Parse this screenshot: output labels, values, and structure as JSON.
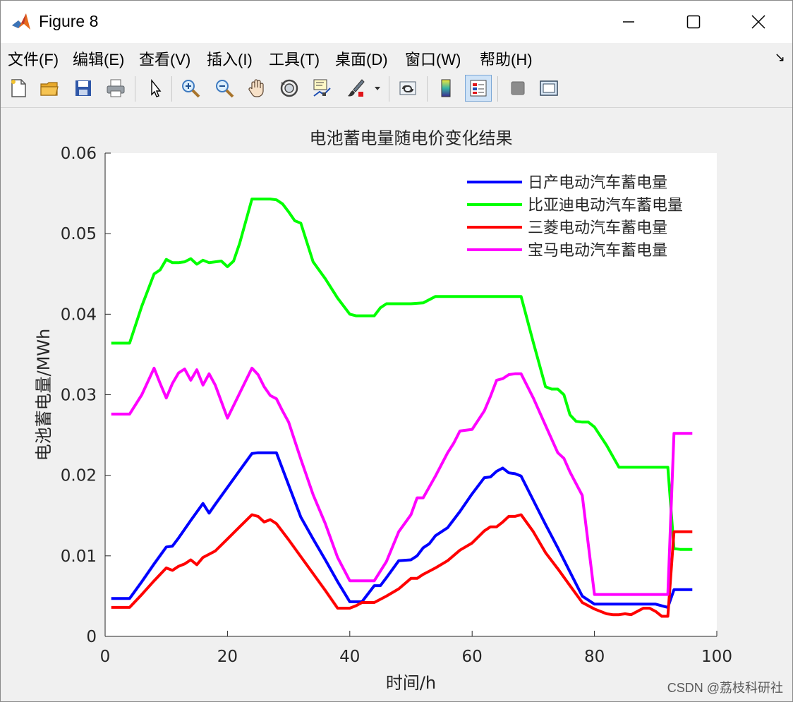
{
  "window": {
    "title": "Figure 8",
    "minimize_icon": "minimize-icon",
    "maximize_icon": "maximize-icon",
    "close_icon": "close-icon"
  },
  "menu": {
    "items": [
      "文件(F)",
      "编辑(E)",
      "查看(V)",
      "插入(I)",
      "工具(T)",
      "桌面(D)",
      "窗口(W)",
      "帮助(H)"
    ],
    "dock_arrow": "↘"
  },
  "toolbar": {
    "icons": [
      "new-figure-icon",
      "open-file-icon",
      "save-icon",
      "print-icon",
      "select-pointer-icon",
      "zoom-in-icon",
      "zoom-out-icon",
      "pan-hand-icon",
      "rotate-3d-icon",
      "data-cursor-icon",
      "brush-icon",
      "link-plot-icon",
      "colorbar-icon",
      "legend-icon",
      "hide-plot-tools-icon",
      "show-plot-tools-icon"
    ]
  },
  "colors": {
    "nissan": "#0000ff",
    "byd": "#00ff00",
    "mitsubishi": "#ff0000",
    "bmw": "#ff00ff",
    "plot_background": "#ffffff",
    "figure_background": "#f0f0f0"
  },
  "watermark": "CSDN @荔枝科研社",
  "chart_data": {
    "type": "line",
    "title": "电池蓄电量随电价变化结果",
    "xlabel": "时间/h",
    "ylabel": "电池蓄电量/MWh",
    "xlim": [
      0,
      100
    ],
    "ylim": [
      0,
      0.06
    ],
    "xticks": [
      "0",
      "20",
      "40",
      "60",
      "80",
      "100"
    ],
    "yticks": [
      "0",
      "0.01",
      "0.02",
      "0.03",
      "0.04",
      "0.05",
      "0.06"
    ],
    "grid": false,
    "legend_position": "top-right",
    "series": [
      {
        "name": "日产电动汽车蓄电量",
        "color": "#0000ff",
        "x": [
          1,
          4,
          6,
          8,
          10,
          11,
          12,
          14,
          16,
          17,
          18,
          20,
          22,
          24,
          25,
          26,
          27,
          28,
          30,
          32,
          34,
          36,
          38,
          40,
          41,
          42,
          44,
          45,
          46,
          48,
          50,
          51,
          52,
          53,
          54,
          56,
          58,
          60,
          62,
          63,
          64,
          65,
          66,
          67,
          68,
          70,
          72,
          74,
          76,
          78,
          80,
          82,
          84,
          86,
          88,
          90,
          92,
          93,
          94,
          96
        ],
        "y": [
          0.0047,
          0.0047,
          0.0068,
          0.009,
          0.0111,
          0.0112,
          0.0122,
          0.0144,
          0.0165,
          0.0153,
          0.0164,
          0.0185,
          0.0206,
          0.0227,
          0.0228,
          0.0228,
          0.0228,
          0.0228,
          0.0188,
          0.0148,
          0.0121,
          0.0095,
          0.0068,
          0.0043,
          0.0043,
          0.0043,
          0.0063,
          0.0063,
          0.0073,
          0.0094,
          0.0095,
          0.01,
          0.011,
          0.0115,
          0.0125,
          0.0135,
          0.0155,
          0.0177,
          0.0197,
          0.0198,
          0.0205,
          0.0209,
          0.0203,
          0.0202,
          0.0199,
          0.0169,
          0.0139,
          0.011,
          0.008,
          0.005,
          0.004,
          0.004,
          0.004,
          0.004,
          0.004,
          0.004,
          0.0036,
          0.0058,
          0.0058,
          0.0058
        ]
      },
      {
        "name": "比亚迪电动汽车蓄电量",
        "color": "#00ff00",
        "x": [
          1,
          4,
          6,
          8,
          9,
          10,
          11,
          12,
          13,
          14,
          15,
          16,
          17,
          18,
          19,
          20,
          21,
          22,
          24,
          25,
          26,
          27,
          28,
          29,
          30,
          31,
          32,
          34,
          36,
          38,
          40,
          41,
          42,
          43,
          44,
          45,
          46,
          48,
          50,
          52,
          54,
          56,
          58,
          60,
          62,
          64,
          66,
          68,
          70,
          72,
          73,
          74,
          75,
          76,
          77,
          78,
          79,
          80,
          82,
          84,
          86,
          88,
          90,
          92,
          93,
          94,
          96
        ],
        "y": [
          0.0364,
          0.0364,
          0.041,
          0.045,
          0.0455,
          0.0468,
          0.0464,
          0.0464,
          0.0465,
          0.0469,
          0.0462,
          0.0467,
          0.0464,
          0.0465,
          0.0466,
          0.0459,
          0.0466,
          0.0488,
          0.0543,
          0.0543,
          0.0543,
          0.0543,
          0.0542,
          0.0537,
          0.0527,
          0.0516,
          0.0513,
          0.0465,
          0.0444,
          0.042,
          0.04,
          0.0398,
          0.0398,
          0.0398,
          0.0398,
          0.0408,
          0.0413,
          0.0413,
          0.0413,
          0.0414,
          0.0422,
          0.0422,
          0.0422,
          0.0422,
          0.0422,
          0.0422,
          0.0422,
          0.0422,
          0.0365,
          0.031,
          0.0307,
          0.0307,
          0.03,
          0.0275,
          0.0267,
          0.0266,
          0.0266,
          0.026,
          0.0237,
          0.021,
          0.021,
          0.021,
          0.021,
          0.021,
          0.0109,
          0.0108,
          0.0108
        ]
      },
      {
        "name": "三菱电动汽车蓄电量",
        "color": "#ff0000",
        "x": [
          1,
          4,
          6,
          8,
          10,
          11,
          12,
          13,
          14,
          15,
          16,
          18,
          20,
          22,
          24,
          25,
          26,
          27,
          28,
          30,
          32,
          34,
          36,
          38,
          40,
          41,
          42,
          44,
          46,
          48,
          50,
          51,
          52,
          54,
          56,
          58,
          60,
          62,
          63,
          64,
          65,
          66,
          67,
          68,
          70,
          72,
          74,
          76,
          78,
          80,
          82,
          83,
          84,
          85,
          86,
          88,
          89,
          90,
          91,
          92,
          93,
          94,
          96
        ],
        "y": [
          0.0036,
          0.0036,
          0.0052,
          0.0069,
          0.0085,
          0.0082,
          0.0087,
          0.009,
          0.0095,
          0.0089,
          0.0098,
          0.0106,
          0.0121,
          0.0136,
          0.0151,
          0.0149,
          0.0142,
          0.0145,
          0.014,
          0.012,
          0.0099,
          0.0078,
          0.0057,
          0.0035,
          0.0035,
          0.0038,
          0.0042,
          0.0042,
          0.005,
          0.0059,
          0.0072,
          0.0072,
          0.0077,
          0.0085,
          0.0094,
          0.0107,
          0.0116,
          0.0131,
          0.0136,
          0.0136,
          0.0142,
          0.0149,
          0.0149,
          0.0151,
          0.013,
          0.0104,
          0.0084,
          0.0063,
          0.0042,
          0.0034,
          0.0028,
          0.0027,
          0.0027,
          0.0028,
          0.0027,
          0.0035,
          0.0035,
          0.0031,
          0.0025,
          0.0025,
          0.013,
          0.013,
          0.013
        ]
      },
      {
        "name": "宝马电动汽车蓄电量",
        "color": "#ff00ff",
        "x": [
          1,
          4,
          6,
          8,
          9,
          10,
          11,
          12,
          13,
          14,
          15,
          16,
          17,
          18,
          20,
          22,
          24,
          25,
          26,
          27,
          28,
          29,
          30,
          32,
          34,
          36,
          38,
          40,
          41,
          42,
          44,
          46,
          48,
          50,
          51,
          52,
          54,
          56,
          57,
          58,
          60,
          62,
          63,
          64,
          65,
          66,
          67,
          68,
          70,
          72,
          74,
          75,
          76,
          78,
          80,
          82,
          84,
          86,
          88,
          90,
          92,
          93,
          94,
          96
        ],
        "y": [
          0.0276,
          0.0276,
          0.03,
          0.0333,
          0.0314,
          0.0296,
          0.0314,
          0.0327,
          0.0332,
          0.0318,
          0.0331,
          0.0312,
          0.0326,
          0.0312,
          0.0271,
          0.0302,
          0.0333,
          0.0325,
          0.031,
          0.0299,
          0.0295,
          0.028,
          0.0266,
          0.022,
          0.0176,
          0.014,
          0.0098,
          0.0069,
          0.0069,
          0.0069,
          0.0069,
          0.0093,
          0.013,
          0.0151,
          0.0172,
          0.0172,
          0.0199,
          0.0228,
          0.024,
          0.0255,
          0.0257,
          0.028,
          0.0298,
          0.0318,
          0.032,
          0.0325,
          0.0326,
          0.0326,
          0.0296,
          0.0262,
          0.0228,
          0.0221,
          0.0204,
          0.0175,
          0.0052,
          0.0052,
          0.0052,
          0.0052,
          0.0052,
          0.0052,
          0.0052,
          0.0252,
          0.0252,
          0.0252
        ]
      }
    ]
  }
}
